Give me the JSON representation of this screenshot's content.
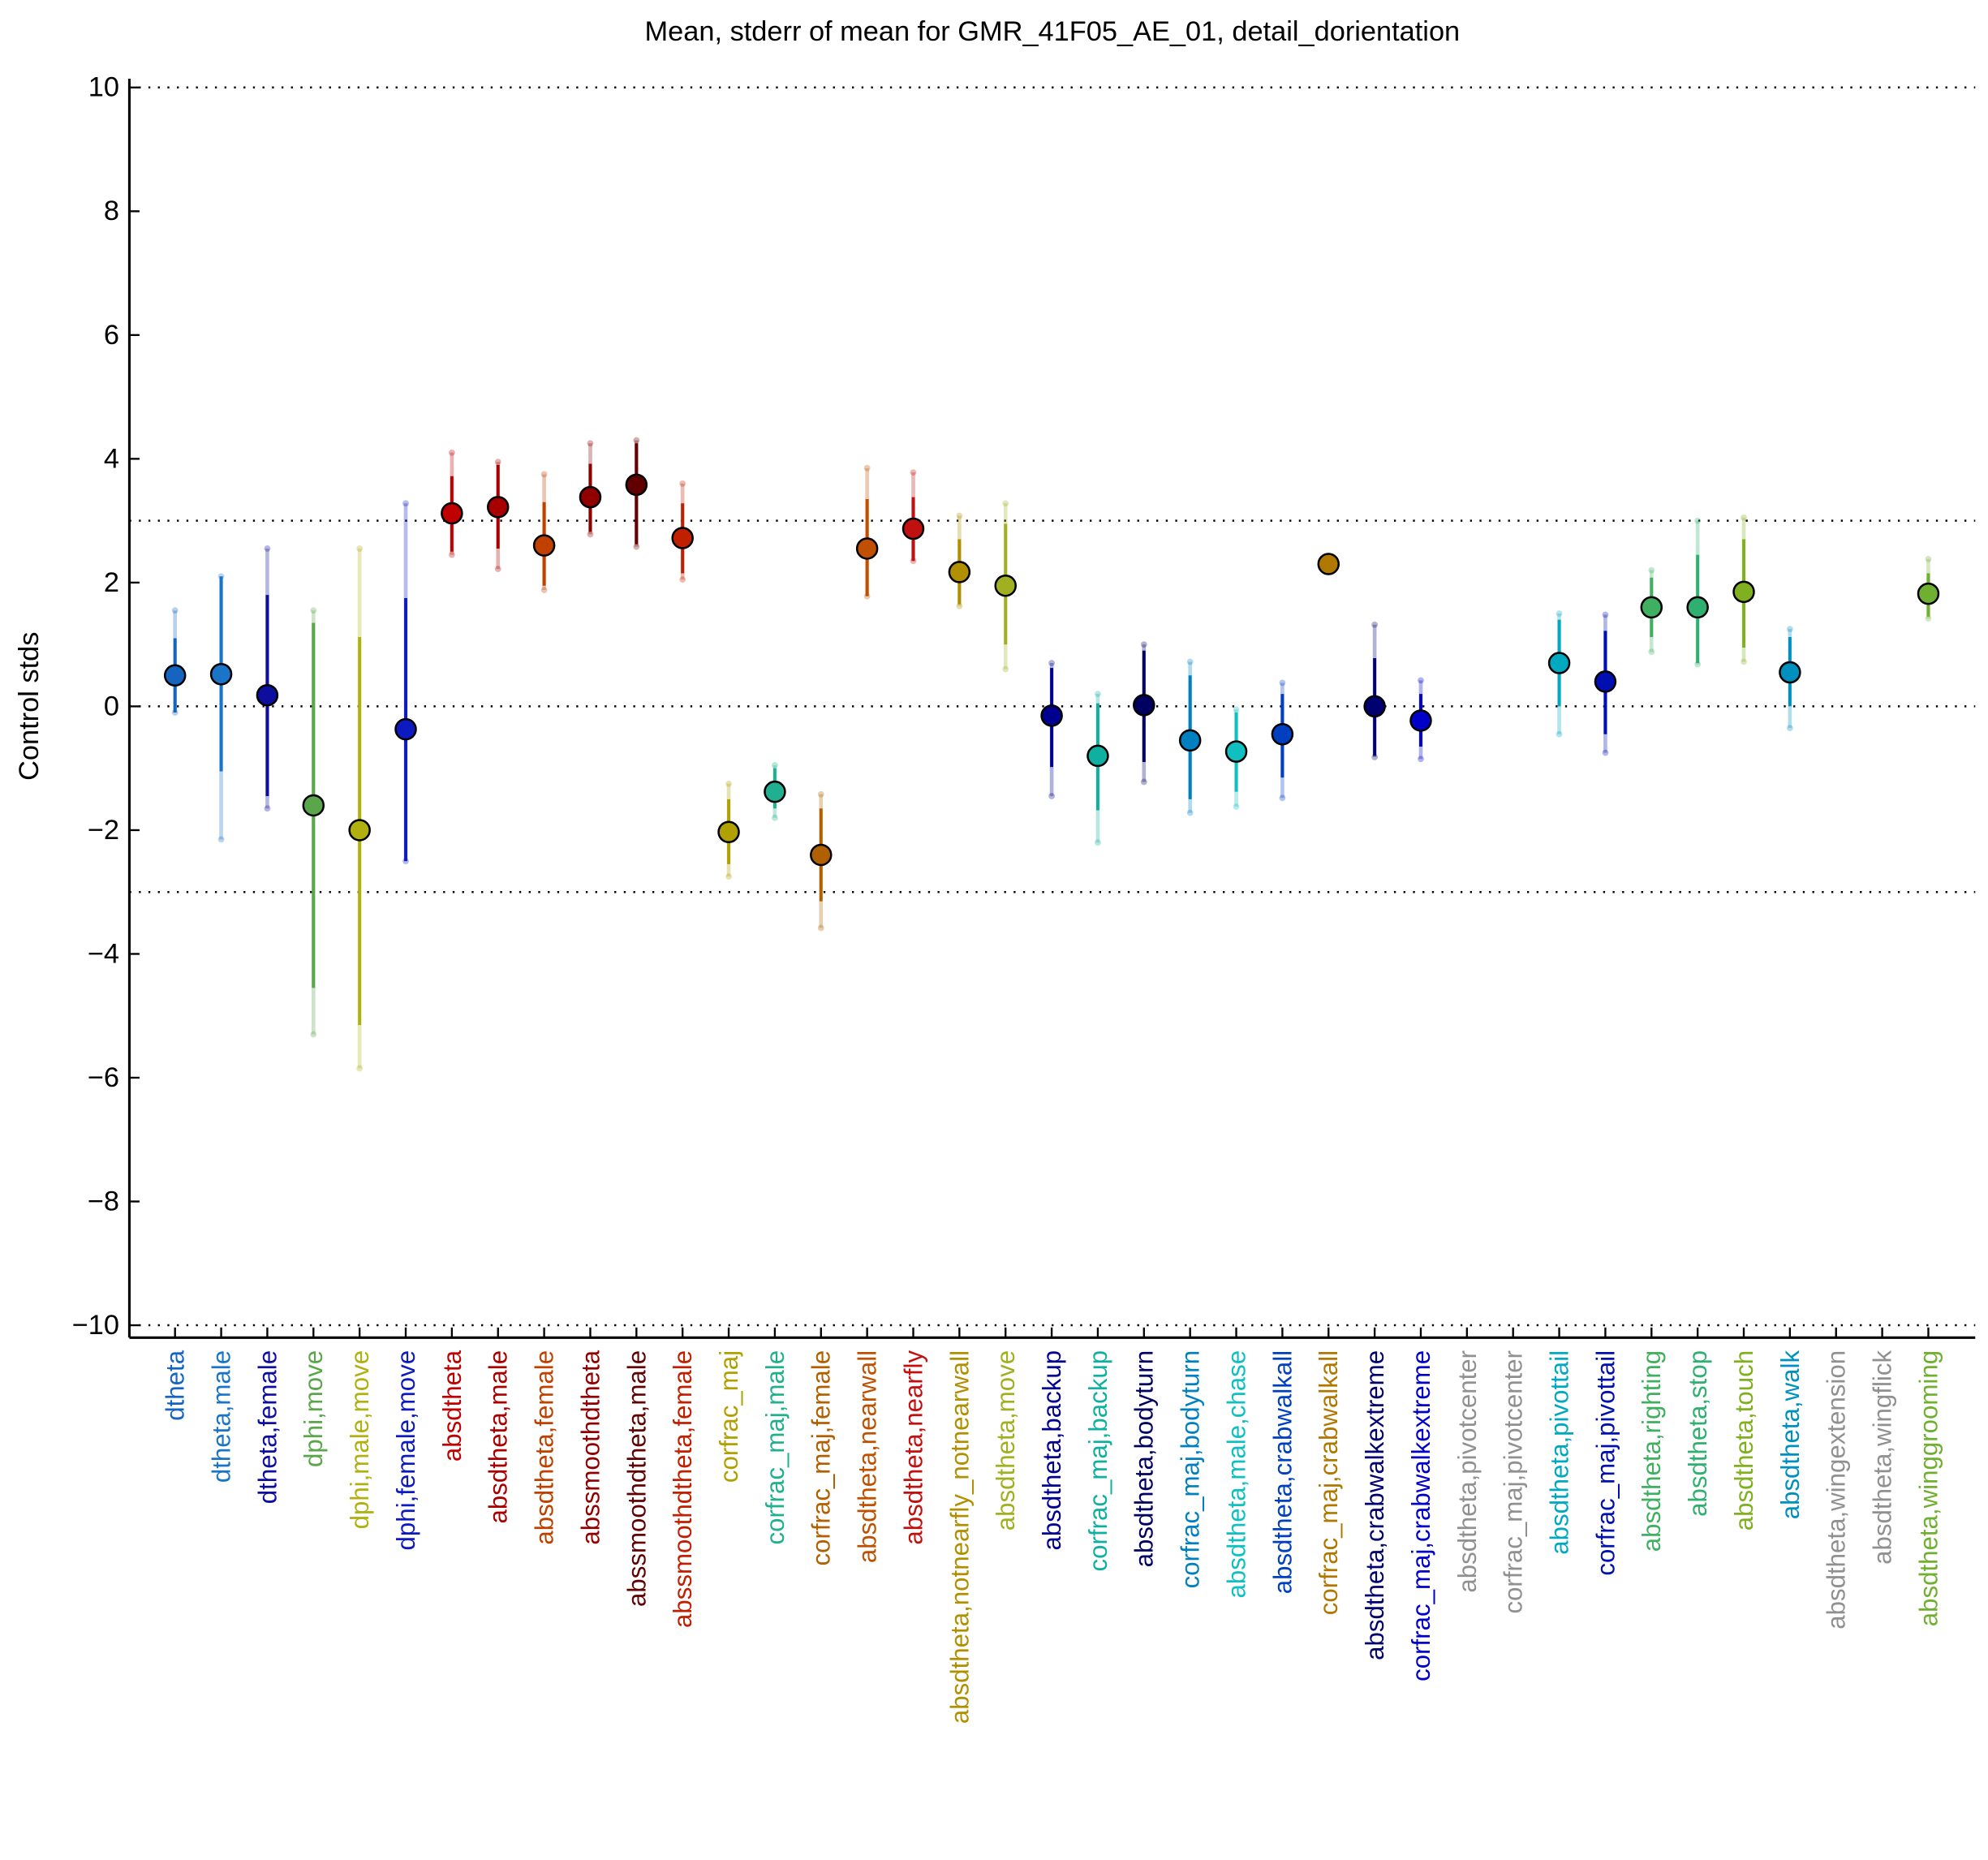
{
  "chart_data": {
    "type": "errorbar",
    "title": "Mean, stderr of mean for GMR_41F05_AE_01, detail_dorientation",
    "y_label": "Control stds",
    "categories": [
      "dtheta",
      "dtheta,male",
      "dtheta,female",
      "dphi,move",
      "dphi,male,move",
      "dphi,female,move",
      "absdtheta",
      "absdtheta,male",
      "absdtheta,female",
      "abssmoothdtheta",
      "abssmoothdtheta,male",
      "abssmoothdtheta,female",
      "corfrac_maj",
      "corfrac_maj,male",
      "corfrac_maj,female",
      "absdtheta,nearwall",
      "absdtheta,nearfly",
      "absdtheta,notnearfly_notnearwall",
      "absdtheta,move",
      "absdtheta,backup",
      "corfrac_maj,backup",
      "absdtheta,bodyturn",
      "corfrac_maj,bodyturn",
      "absdtheta,male,chase",
      "absdtheta,crabwalkall",
      "corfrac_maj,crabwalkall",
      "absdtheta,crabwalkextreme",
      "corfrac_maj,crabwalkextreme",
      "absdtheta,pivotcenter",
      "corfrac_maj,pivotcenter",
      "absdtheta,pivottail",
      "corfrac_maj,pivottail",
      "absdtheta,righting",
      "absdtheta,stop",
      "absdtheta,touch",
      "absdtheta,walk",
      "absdtheta,wingextension",
      "absdtheta,wingflick",
      "absdtheta,winggrooming"
    ],
    "colors": [
      "#1565c0",
      "#1a75c8",
      "#0d0d9e",
      "#5aa64a",
      "#b0b010",
      "#0d1ac0",
      "#c00000",
      "#a80000",
      "#c04000",
      "#900000",
      "#600000",
      "#c02000",
      "#b0a000",
      "#20b090",
      "#b06000",
      "#c05000",
      "#c01010",
      "#b09000",
      "#a0b020",
      "#000090",
      "#10b0a0",
      "#000060",
      "#0080c0",
      "#10c0c0",
      "#0040c0",
      "#b07800",
      "#000070",
      "#0000c8",
      "#909090",
      "#909090",
      "#00a8c0",
      "#0010b0",
      "#40b060",
      "#30b070",
      "#80b020",
      "#0090c0",
      "#909090",
      "#909090",
      "#70b030"
    ],
    "values": [
      0.5,
      0.52,
      0.18,
      -1.6,
      -2.0,
      -0.37,
      3.12,
      3.22,
      2.6,
      3.38,
      3.58,
      2.72,
      -2.03,
      -1.38,
      -2.4,
      2.55,
      2.87,
      2.17,
      1.95,
      -0.15,
      -0.8,
      0.02,
      -0.55,
      -0.73,
      -0.45,
      2.3,
      0.0,
      -0.23,
      null,
      null,
      0.7,
      0.4,
      1.6,
      1.6,
      1.85,
      0.55,
      null,
      null,
      1.82
    ],
    "stderr_low": [
      -0.1,
      -1.05,
      -1.45,
      -4.55,
      -5.15,
      -2.5,
      2.5,
      2.55,
      1.95,
      2.82,
      2.62,
      2.15,
      -2.55,
      -1.65,
      -3.15,
      1.78,
      2.35,
      1.65,
      1.0,
      -0.98,
      -1.68,
      -0.9,
      -1.5,
      -1.38,
      -1.15,
      2.25,
      -0.8,
      -0.65,
      null,
      null,
      0.0,
      -0.45,
      1.12,
      0.7,
      0.95,
      0.0,
      null,
      null,
      1.45
    ],
    "stderr_high": [
      1.1,
      2.1,
      1.8,
      1.35,
      1.12,
      1.75,
      3.72,
      3.9,
      3.3,
      3.92,
      4.25,
      3.28,
      -1.5,
      -1.0,
      -1.65,
      3.35,
      3.38,
      2.7,
      2.95,
      0.62,
      0.05,
      0.9,
      0.5,
      -0.1,
      0.2,
      2.35,
      0.78,
      0.2,
      null,
      null,
      1.4,
      1.22,
      2.08,
      2.45,
      2.7,
      1.12,
      null,
      null,
      2.15
    ],
    "outer_low": [
      -0.1,
      -2.15,
      -1.65,
      -5.3,
      -5.85,
      -2.5,
      2.45,
      2.22,
      1.88,
      2.78,
      2.58,
      2.05,
      -2.75,
      -1.8,
      -3.58,
      1.78,
      2.35,
      1.62,
      0.6,
      -1.45,
      -2.2,
      -1.22,
      -1.72,
      -1.62,
      -1.48,
      2.25,
      -0.82,
      -0.85,
      null,
      null,
      -0.45,
      -0.75,
      0.88,
      0.68,
      0.72,
      -0.35,
      null,
      null,
      1.42
    ],
    "outer_high": [
      1.55,
      2.1,
      2.55,
      1.55,
      2.55,
      3.28,
      4.1,
      3.95,
      3.75,
      4.25,
      4.3,
      3.6,
      -1.25,
      -0.95,
      -1.42,
      3.85,
      3.78,
      3.08,
      3.28,
      0.7,
      0.2,
      1.0,
      0.72,
      -0.05,
      0.38,
      2.35,
      1.32,
      0.42,
      null,
      null,
      1.5,
      1.48,
      2.2,
      3.0,
      3.05,
      1.25,
      null,
      null,
      2.38
    ],
    "ylim": [
      -10.2,
      10.1
    ],
    "yticks": [
      {
        "value": -10,
        "label": "−10"
      },
      {
        "value": -8,
        "label": "−8"
      },
      {
        "value": -6,
        "label": "−6"
      },
      {
        "value": -4,
        "label": "−4"
      },
      {
        "value": -2,
        "label": "−2"
      },
      0,
      2,
      4,
      6,
      8,
      10
    ],
    "ref_lines": [
      -10,
      -3,
      0,
      3,
      10
    ]
  }
}
